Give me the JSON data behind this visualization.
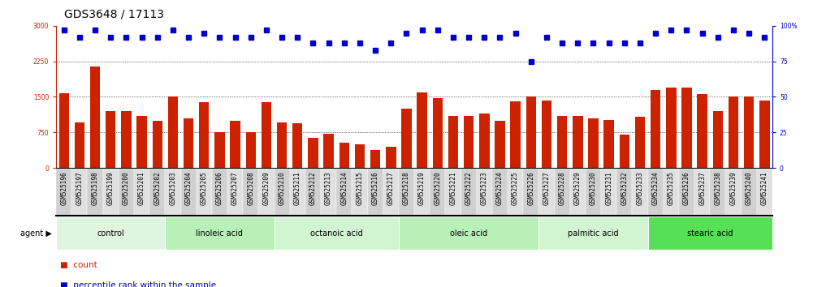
{
  "title": "GDS3648 / 17113",
  "samples": [
    "GSM525196",
    "GSM525197",
    "GSM525198",
    "GSM525199",
    "GSM525200",
    "GSM525201",
    "GSM525202",
    "GSM525203",
    "GSM525204",
    "GSM525205",
    "GSM525206",
    "GSM525207",
    "GSM525208",
    "GSM525209",
    "GSM525210",
    "GSM525211",
    "GSM525212",
    "GSM525213",
    "GSM525214",
    "GSM525215",
    "GSM525216",
    "GSM525217",
    "GSM525218",
    "GSM525219",
    "GSM525220",
    "GSM525221",
    "GSM525222",
    "GSM525223",
    "GSM525224",
    "GSM525225",
    "GSM525226",
    "GSM525227",
    "GSM525228",
    "GSM525229",
    "GSM525230",
    "GSM525231",
    "GSM525232",
    "GSM525233",
    "GSM525234",
    "GSM525235",
    "GSM525236",
    "GSM525237",
    "GSM525238",
    "GSM525239",
    "GSM525240",
    "GSM525241"
  ],
  "counts": [
    1580,
    960,
    2150,
    1200,
    1200,
    1100,
    1000,
    1500,
    1050,
    1390,
    760,
    1000,
    760,
    1380,
    960,
    950,
    640,
    720,
    530,
    500,
    370,
    450,
    1250,
    1600,
    1480,
    1100,
    1100,
    1150,
    1000,
    1400,
    1500,
    1430,
    1100,
    1100,
    1050,
    1010,
    700,
    1080,
    1650,
    1700,
    1700,
    1560,
    1200,
    1500,
    1500,
    1430
  ],
  "percentile_ranks": [
    97,
    92,
    97,
    92,
    92,
    92,
    92,
    97,
    92,
    95,
    92,
    92,
    92,
    97,
    92,
    92,
    88,
    88,
    88,
    88,
    83,
    88,
    95,
    97,
    97,
    92,
    92,
    92,
    92,
    95,
    75,
    92,
    88,
    88,
    88,
    88,
    88,
    88,
    95,
    97,
    97,
    95,
    92,
    97,
    95,
    92
  ],
  "groups": [
    {
      "name": "control",
      "start": 0,
      "end": 7
    },
    {
      "name": "linoleic acid",
      "start": 7,
      "end": 14
    },
    {
      "name": "octanoic acid",
      "start": 14,
      "end": 22
    },
    {
      "name": "oleic acid",
      "start": 22,
      "end": 31
    },
    {
      "name": "palmitic acid",
      "start": 31,
      "end": 38
    },
    {
      "name": "stearic acid",
      "start": 38,
      "end": 46
    }
  ],
  "group_colors": [
    "#e0f5e0",
    "#b8f0b8",
    "#d0f5d0",
    "#b8f0b8",
    "#d0f5d0",
    "#55e055"
  ],
  "bar_color": "#cc2200",
  "dot_color": "#0000cc",
  "ylim_left": [
    0,
    3000
  ],
  "ylim_right": [
    0,
    100
  ],
  "yticks_left": [
    0,
    750,
    1500,
    2250,
    3000
  ],
  "yticks_right": [
    0,
    25,
    50,
    75,
    100
  ],
  "grid_values": [
    750,
    1500,
    2250
  ],
  "title_fontsize": 10,
  "tick_fontsize": 5.5,
  "label_fontsize": 7.0,
  "legend_fontsize": 7.5
}
